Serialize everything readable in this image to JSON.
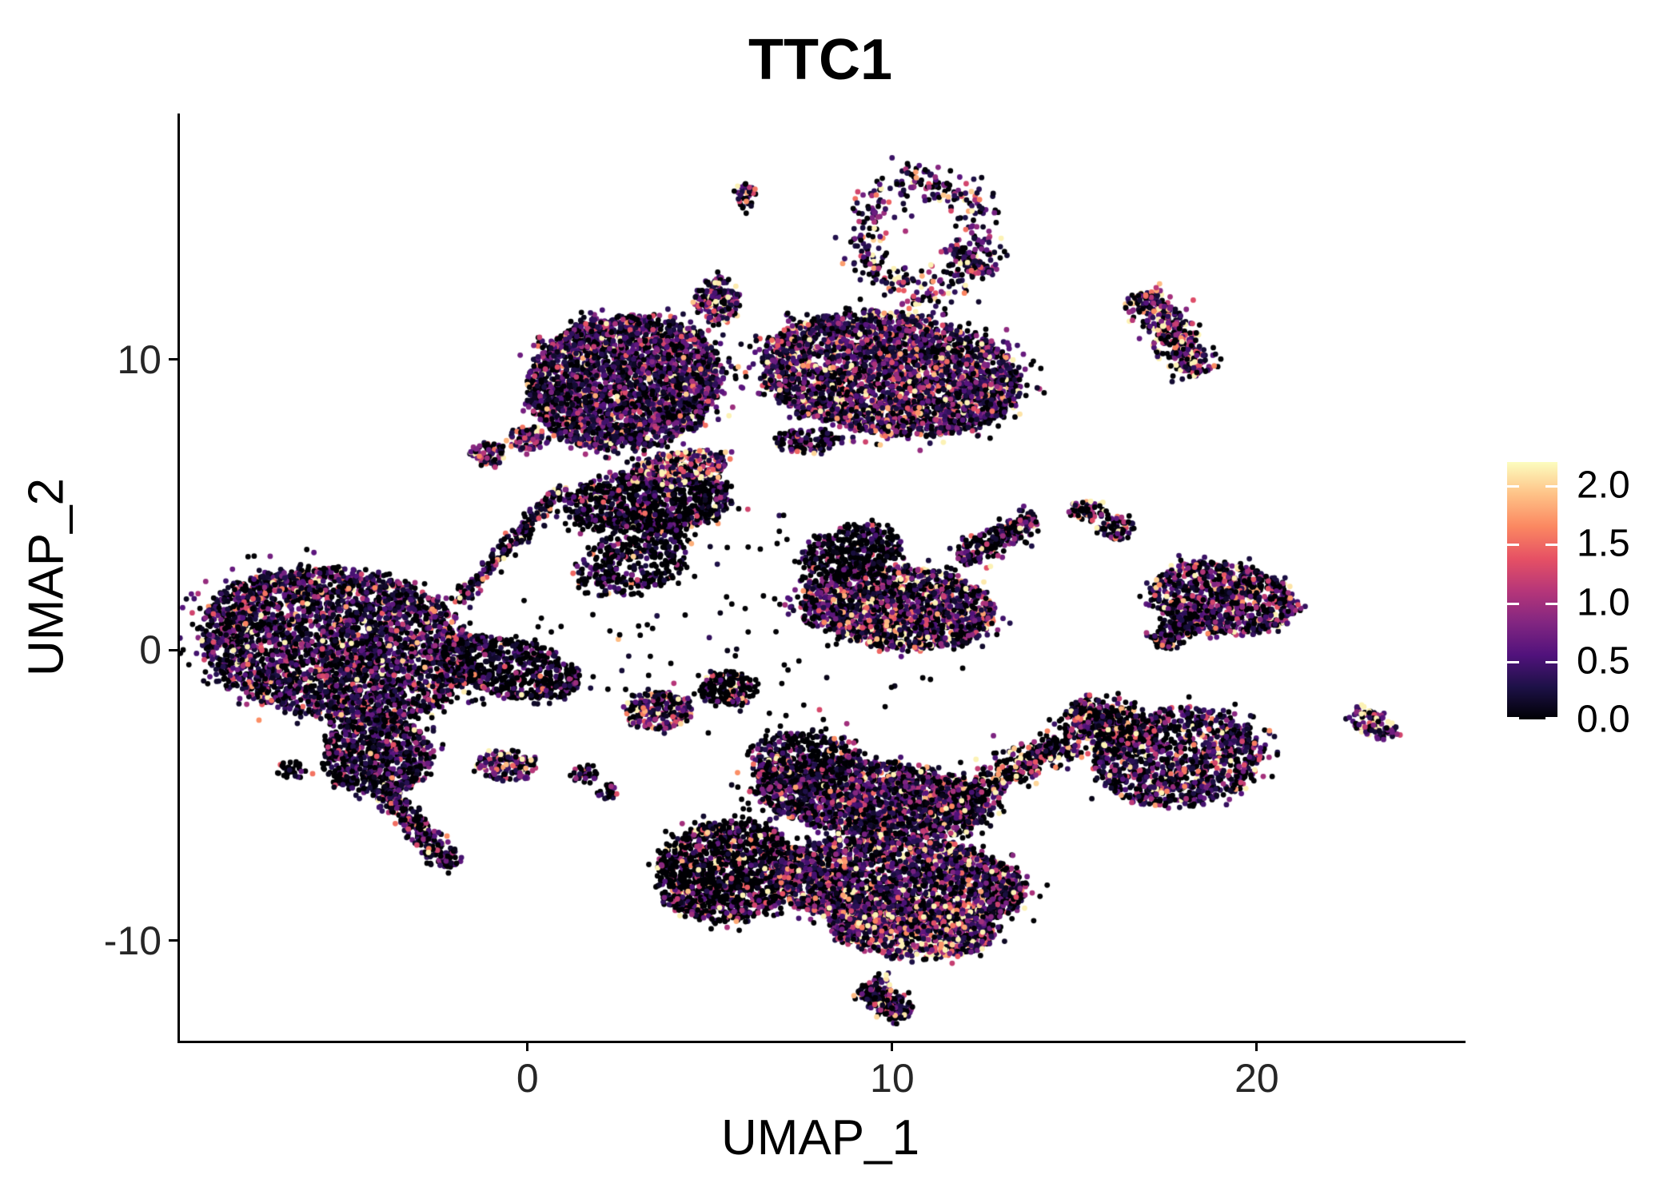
{
  "chart_data": {
    "type": "scatter",
    "title": "TTC1",
    "xlabel": "UMAP_1",
    "ylabel": "UMAP_2",
    "x_range": [
      -9.6,
      25.66
    ],
    "y_range": [
      -13.44,
      18.47
    ],
    "x_ticks": {
      "values": [
        0,
        10,
        20
      ],
      "labels": [
        "0",
        "10",
        "20"
      ]
    },
    "y_ticks": {
      "values": [
        -10,
        0,
        10
      ],
      "labels": [
        "-10",
        "0",
        "10"
      ]
    },
    "grid": false,
    "legend_position": "right",
    "point_radius_px": 3.4,
    "seed": 42,
    "colorbar": {
      "vmin": 0.0,
      "vmax": 2.2,
      "tick_values": [
        2.0,
        1.5,
        1.0,
        0.5,
        0.0
      ],
      "tick_labels": [
        "2.0",
        "1.5",
        "1.0",
        "0.5",
        "0.0"
      ],
      "colormap": "magma",
      "stops": [
        "#000004",
        "#1D1147",
        "#51127C",
        "#822681",
        "#B63679",
        "#E65164",
        "#FB8861",
        "#FEC287",
        "#FCFDBF"
      ]
    },
    "clusters": {
      "note": "UMAP cell clusters; cx,cy center in data units; rx,ry radii; rot degrees; n cells; p0 fraction with zero expression; mean = mean nonzero expression",
      "blobs": [
        {
          "name": "left-main-core",
          "cx": -5.3,
          "cy": 0.2,
          "rx": 3.8,
          "ry": 2.6,
          "rot": -12,
          "n": 3400,
          "p0": 0.34,
          "mean": 0.55
        },
        {
          "name": "left-lower-bulge",
          "cx": -4.2,
          "cy": -3.6,
          "rx": 1.5,
          "ry": 1.4,
          "rot": 0,
          "n": 800,
          "p0": 0.42,
          "mean": 0.5
        },
        {
          "name": "left-east-spray",
          "cx": -0.5,
          "cy": -0.6,
          "rx": 2.0,
          "ry": 1.0,
          "rot": -15,
          "n": 620,
          "p0": 0.56,
          "mean": 0.4
        },
        {
          "name": "topleft-small-a",
          "cx": -1.16,
          "cy": 6.75,
          "rx": 0.5,
          "ry": 0.38,
          "rot": 0,
          "n": 70,
          "p0": 0.3,
          "mean": 0.85
        },
        {
          "name": "topleft-small-b",
          "cx": -0.07,
          "cy": 7.28,
          "rx": 0.55,
          "ry": 0.42,
          "rot": 0,
          "n": 80,
          "p0": 0.3,
          "mean": 0.85
        },
        {
          "name": "top-big-left-lobe",
          "cx": 2.6,
          "cy": 9.2,
          "rx": 2.7,
          "ry": 2.3,
          "rot": 15,
          "n": 2800,
          "p0": 0.3,
          "mean": 0.6
        },
        {
          "name": "top-big-right-lobe",
          "cx": 9.9,
          "cy": 9.5,
          "rx": 3.6,
          "ry": 2.1,
          "rot": -8,
          "n": 3200,
          "p0": 0.26,
          "mean": 0.7
        },
        {
          "name": "top-big-black-band",
          "cx": 3.3,
          "cy": 5.1,
          "rx": 2.3,
          "ry": 1.1,
          "rot": 5,
          "n": 950,
          "p0": 0.55,
          "mean": 0.5
        },
        {
          "name": "top-big-salmon-band",
          "cx": 4.1,
          "cy": 6.3,
          "rx": 1.3,
          "ry": 0.55,
          "rot": 10,
          "n": 300,
          "p0": 0.15,
          "mean": 1.1
        },
        {
          "name": "below-top-scatter",
          "cx": 2.9,
          "cy": 3.1,
          "rx": 1.7,
          "ry": 1.1,
          "rot": 30,
          "n": 380,
          "p0": 0.6,
          "mean": 0.42
        },
        {
          "name": "small-horizontal-blob",
          "cx": 7.6,
          "cy": 7.2,
          "rx": 0.9,
          "ry": 0.4,
          "rot": 0,
          "n": 120,
          "p0": 0.5,
          "mean": 0.5
        },
        {
          "name": "mid-right-core",
          "cx": 10.1,
          "cy": 1.5,
          "rx": 2.7,
          "ry": 1.4,
          "rot": -8,
          "n": 1700,
          "p0": 0.3,
          "mean": 0.75
        },
        {
          "name": "mid-right-black-top",
          "cx": 8.8,
          "cy": 3.4,
          "rx": 1.4,
          "ry": 0.9,
          "rot": 20,
          "n": 380,
          "p0": 0.62,
          "mean": 0.35
        },
        {
          "name": "small-pair-right-a",
          "cx": 15.3,
          "cy": 4.8,
          "rx": 0.5,
          "ry": 0.35,
          "rot": 0,
          "n": 60,
          "p0": 0.35,
          "mean": 0.8
        },
        {
          "name": "small-pair-right-b",
          "cx": 16.1,
          "cy": 4.2,
          "rx": 0.55,
          "ry": 0.4,
          "rot": 0,
          "n": 65,
          "p0": 0.35,
          "mean": 0.8
        },
        {
          "name": "small-mid-top-blob",
          "cx": 5.15,
          "cy": 12.06,
          "rx": 0.65,
          "ry": 0.8,
          "rot": 0,
          "n": 170,
          "p0": 0.25,
          "mean": 0.8
        },
        {
          "name": "tiny-top-blob",
          "cx": 5.92,
          "cy": 15.6,
          "rx": 0.28,
          "ry": 0.5,
          "rot": 0,
          "n": 40,
          "p0": 0.3,
          "mean": 0.7
        },
        {
          "name": "right-east-cluster",
          "cx": 19.0,
          "cy": 1.8,
          "rx": 2.0,
          "ry": 1.25,
          "rot": -12,
          "n": 950,
          "p0": 0.32,
          "mean": 0.65
        },
        {
          "name": "right-lower-cluster",
          "cx": 17.8,
          "cy": -3.7,
          "rx": 2.3,
          "ry": 1.7,
          "rot": 8,
          "n": 1200,
          "p0": 0.36,
          "mean": 0.6
        },
        {
          "name": "far-right-crescent",
          "cx": 23.1,
          "cy": -2.5,
          "rx": 0.75,
          "ry": 0.4,
          "rot": -35,
          "n": 100,
          "p0": 0.12,
          "mean": 1.1
        },
        {
          "name": "bottom-black-wing",
          "cx": 5.4,
          "cy": -7.6,
          "rx": 2.0,
          "ry": 1.7,
          "rot": 25,
          "n": 1400,
          "p0": 0.62,
          "mean": 0.8
        },
        {
          "name": "bottom-upper-band",
          "cx": 9.4,
          "cy": -5.1,
          "rx": 3.3,
          "ry": 1.3,
          "rot": -8,
          "n": 1900,
          "p0": 0.32,
          "mean": 0.6
        },
        {
          "name": "bottom-main-core",
          "cx": 10.1,
          "cy": -8.0,
          "rx": 3.5,
          "ry": 1.6,
          "rot": -5,
          "n": 2700,
          "p0": 0.3,
          "mean": 0.7
        },
        {
          "name": "bottom-bright-band",
          "cx": 10.5,
          "cy": -9.6,
          "rx": 2.3,
          "ry": 1.0,
          "rot": -5,
          "n": 900,
          "p0": 0.18,
          "mean": 0.95
        },
        {
          "name": "above-bottom-scatter",
          "cx": 7.5,
          "cy": -3.5,
          "rx": 1.6,
          "ry": 0.7,
          "rot": 0,
          "n": 280,
          "p0": 0.55,
          "mean": 0.5
        },
        {
          "name": "below-bridge-blob",
          "cx": -0.66,
          "cy": -3.97,
          "rx": 0.8,
          "ry": 0.55,
          "rot": 0,
          "n": 140,
          "p0": 0.25,
          "mean": 0.85
        },
        {
          "name": "tiny-blob-a",
          "cx": 1.49,
          "cy": -4.25,
          "rx": 0.38,
          "ry": 0.3,
          "rot": 0,
          "n": 35,
          "p0": 0.4,
          "mean": 0.6
        },
        {
          "name": "tiny-blob-b",
          "cx": 2.08,
          "cy": -4.86,
          "rx": 0.32,
          "ry": 0.25,
          "rot": 0,
          "n": 25,
          "p0": 0.4,
          "mean": 0.5
        },
        {
          "name": "center-magenta-blob",
          "cx": 3.5,
          "cy": -2.1,
          "rx": 0.9,
          "ry": 0.65,
          "rot": 0,
          "n": 240,
          "p0": 0.22,
          "mean": 0.95
        },
        {
          "name": "black-red-blob",
          "cx": 5.4,
          "cy": -1.3,
          "rx": 0.75,
          "ry": 0.6,
          "rot": 0,
          "n": 210,
          "p0": 0.68,
          "mean": 1.0
        },
        {
          "name": "small-piece-blob",
          "cx": 6.75,
          "cy": -4.2,
          "rx": 0.45,
          "ry": 0.6,
          "rot": 0,
          "n": 90,
          "p0": 0.3,
          "mean": 0.85
        },
        {
          "name": "tiny-left-blob",
          "cx": -6.58,
          "cy": -4.1,
          "rx": 0.38,
          "ry": 0.28,
          "rot": 0,
          "n": 32,
          "p0": 0.6,
          "mean": 0.35
        },
        {
          "name": "stray-noise",
          "cx": 6.0,
          "cy": 1.0,
          "rx": 6.0,
          "ry": 4.0,
          "rot": 0,
          "n": 120,
          "p0": 0.7,
          "mean": 0.35
        }
      ],
      "strips": [
        {
          "name": "left-tail",
          "x1": -3.95,
          "y1": -4.9,
          "x2": -2.1,
          "y2": -7.5,
          "w": 0.38,
          "n": 280,
          "p0": 0.3,
          "mean": 0.6
        },
        {
          "name": "bridge-diagonal",
          "x1": -2.05,
          "y1": 1.6,
          "x2": 0.9,
          "y2": 5.6,
          "w": 0.25,
          "n": 240,
          "p0": 0.35,
          "mean": 0.6
        },
        {
          "name": "mid-right-arm",
          "x1": 11.8,
          "y1": 3.1,
          "x2": 13.9,
          "y2": 4.5,
          "w": 0.45,
          "n": 280,
          "p0": 0.4,
          "mean": 0.7
        },
        {
          "name": "right-upper-diagonal",
          "x1": 16.8,
          "y1": 12.3,
          "x2": 18.4,
          "y2": 9.5,
          "w": 0.6,
          "n": 430,
          "p0": 0.25,
          "mean": 0.95
        },
        {
          "name": "right-east-tail",
          "x1": 17.2,
          "y1": 0.2,
          "x2": 18.2,
          "y2": 1.2,
          "w": 0.45,
          "n": 170,
          "p0": 0.5,
          "mean": 0.6
        },
        {
          "name": "bottom-right-arm",
          "x1": 11.4,
          "y1": -5.3,
          "x2": 16.6,
          "y2": -1.9,
          "w": 0.6,
          "n": 600,
          "p0": 0.5,
          "mean": 0.9
        },
        {
          "name": "bottom-tail",
          "x1": 9.2,
          "y1": -11.5,
          "x2": 10.3,
          "y2": -12.6,
          "w": 0.5,
          "n": 240,
          "p0": 0.38,
          "mean": 0.65
        },
        {
          "name": "ring-tail",
          "x1": 11.5,
          "y1": 13.9,
          "x2": 12.6,
          "y2": 12.9,
          "w": 0.3,
          "n": 90,
          "p0": 0.3,
          "mean": 0.7
        },
        {
          "name": "right-lower-black-arm",
          "x1": 14.9,
          "y1": -1.9,
          "x2": 16.6,
          "y2": -3.2,
          "w": 0.55,
          "n": 280,
          "p0": 0.58,
          "mean": 0.9
        }
      ],
      "rings": [
        {
          "name": "top-ring-cluster",
          "cx": 10.75,
          "cy": 14.2,
          "rx": 1.65,
          "ry": 1.85,
          "thickness": 0.32,
          "n": 400,
          "p0": 0.28,
          "mean": 0.8
        }
      ],
      "singles": [
        {
          "name": "isolated-orange-cell",
          "x": -5.96,
          "y": -4.25,
          "expr": 1.55
        }
      ]
    }
  }
}
